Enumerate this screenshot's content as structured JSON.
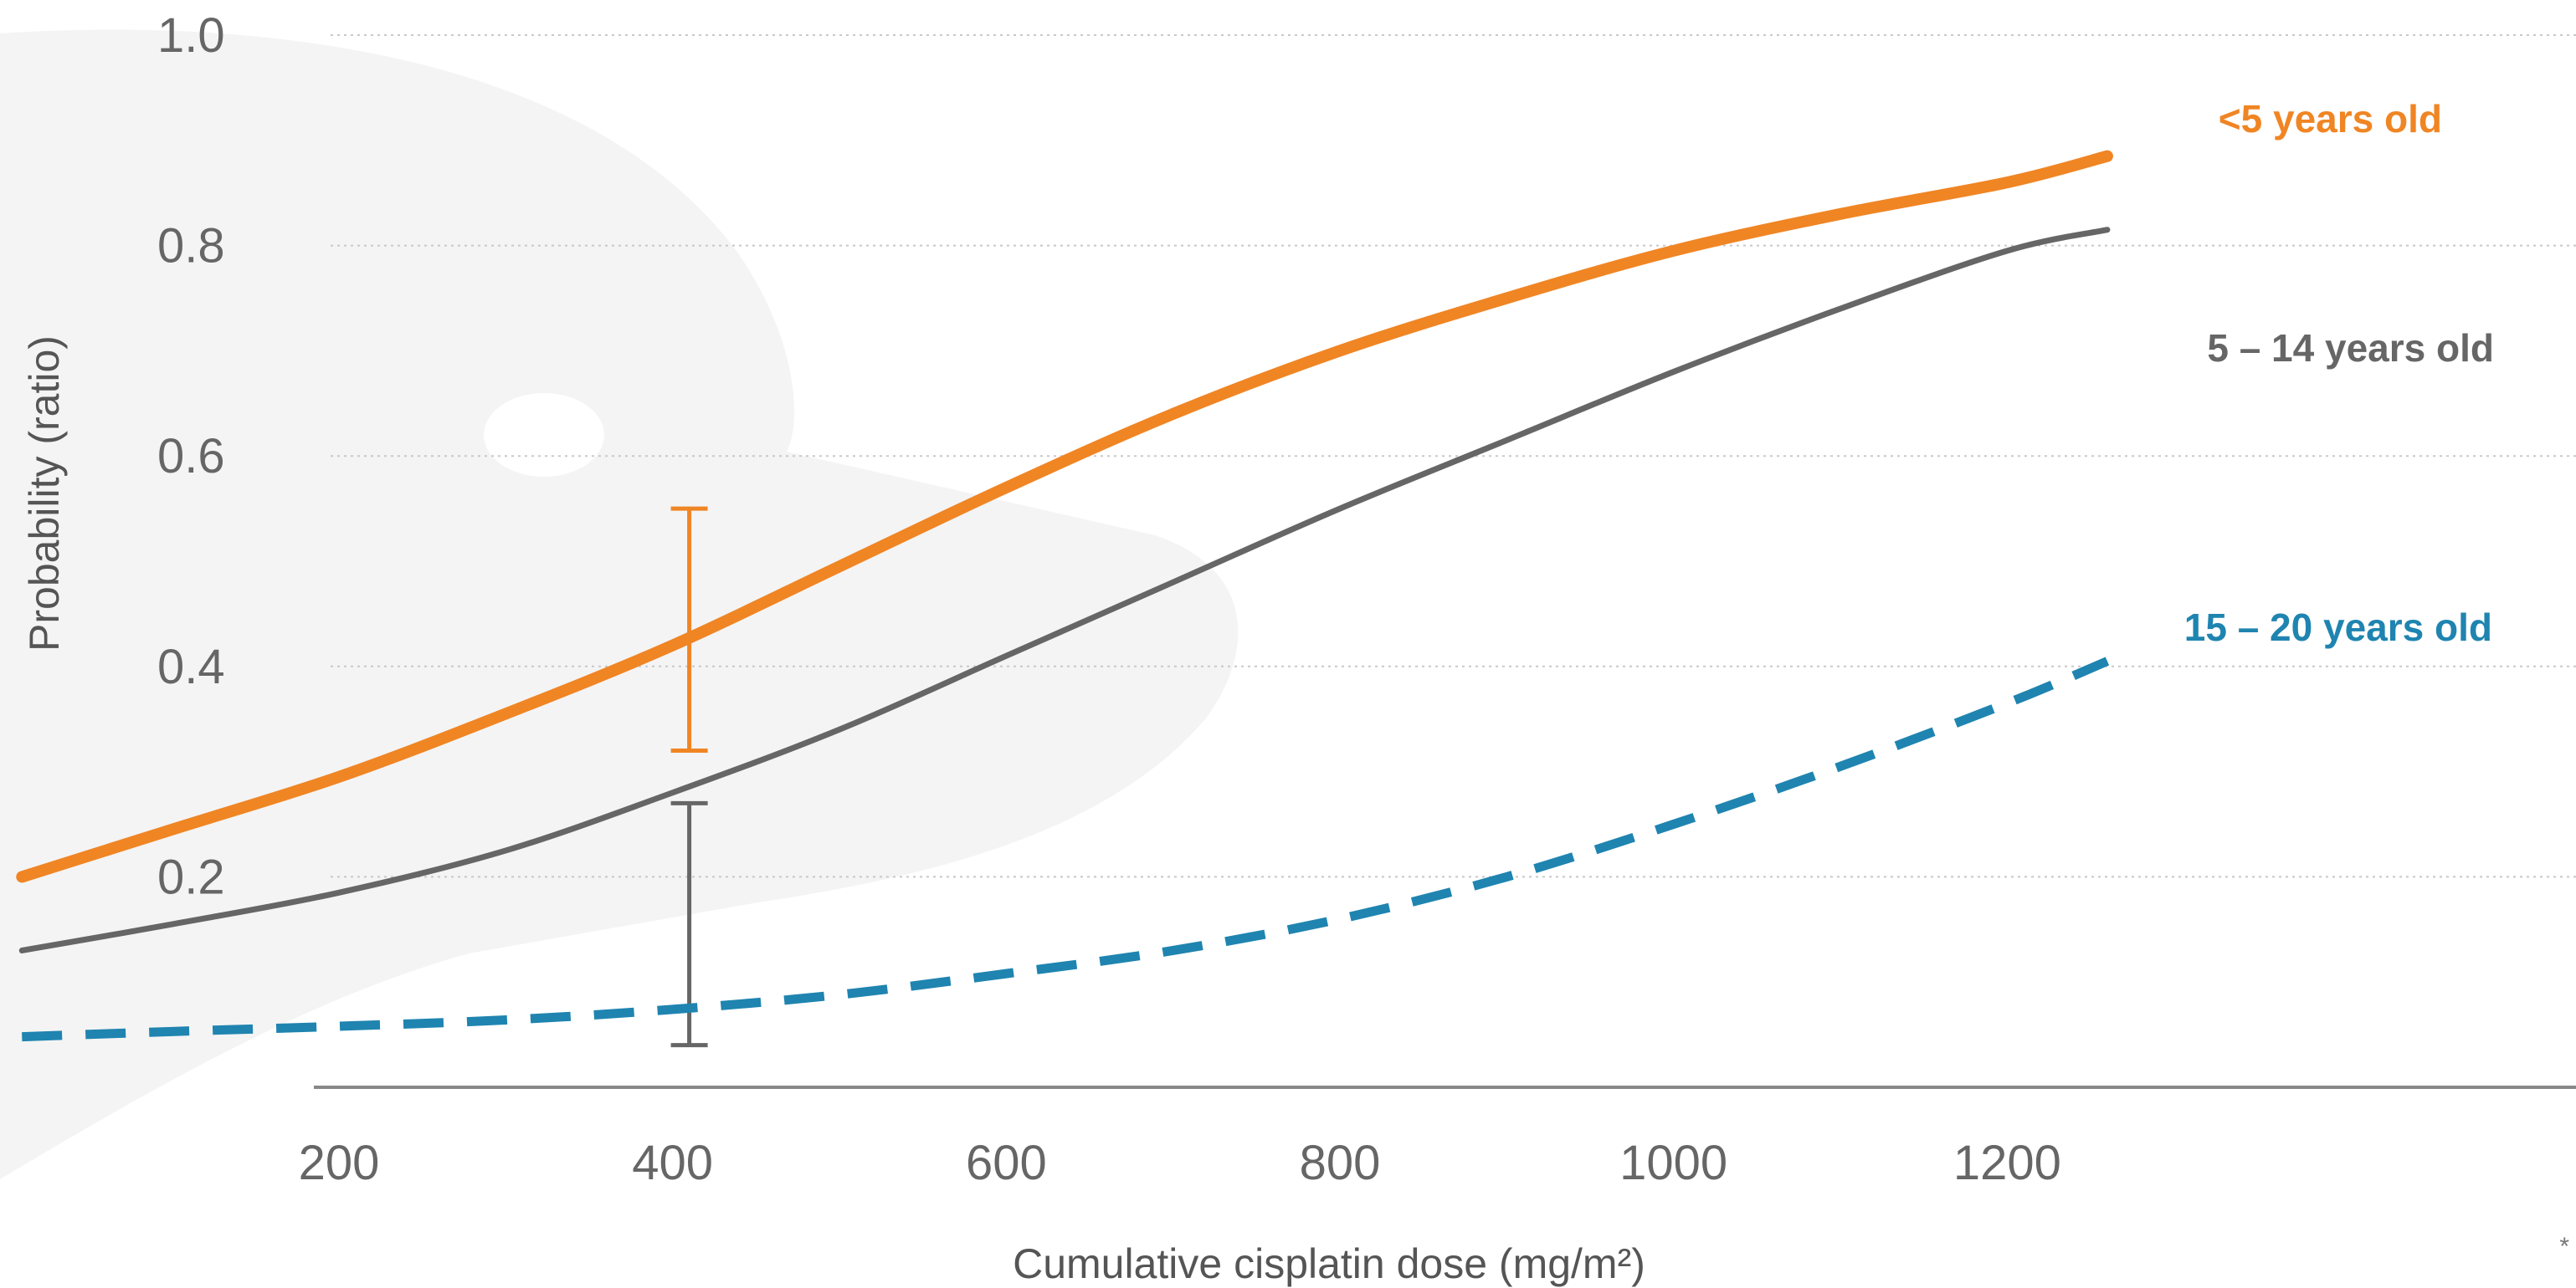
{
  "chart_data": {
    "type": "line",
    "title": "",
    "xlabel": "Cumulative cisplatin dose (mg/m²)",
    "ylabel": "Probability (ratio)",
    "xlim": [
      0,
      1350
    ],
    "ylim": [
      0,
      1.0
    ],
    "x_ticks": [
      200,
      400,
      600,
      800,
      1000,
      1200
    ],
    "x_tick_labels": [
      "200",
      "400",
      "600",
      "800",
      "1000",
      "1200"
    ],
    "y_ticks": [
      0.2,
      0.4,
      0.6,
      0.8,
      1.0
    ],
    "y_tick_labels": [
      "0.2",
      "0.4",
      "0.6",
      "0.8",
      "1.0"
    ],
    "grid": "horizontal dotted",
    "footnote": "*",
    "series": [
      {
        "name": "<5 years old",
        "color": "#F08524",
        "style": "solid-thick",
        "x": [
          10,
          100,
          200,
          300,
          400,
          500,
          600,
          700,
          800,
          900,
          1000,
          1100,
          1200,
          1260
        ],
        "y": [
          0.2,
          0.245,
          0.295,
          0.355,
          0.42,
          0.495,
          0.57,
          0.64,
          0.7,
          0.75,
          0.795,
          0.83,
          0.86,
          0.885
        ]
      },
      {
        "name": "5 – 14 years old",
        "color": "#666666",
        "style": "solid-thin",
        "x": [
          10,
          100,
          200,
          300,
          400,
          500,
          600,
          700,
          800,
          900,
          1000,
          1100,
          1200,
          1260
        ],
        "y": [
          0.13,
          0.155,
          0.185,
          0.225,
          0.28,
          0.34,
          0.41,
          0.48,
          0.55,
          0.615,
          0.68,
          0.74,
          0.795,
          0.815
        ]
      },
      {
        "name": "15 – 20 years old",
        "color": "#1F84B0",
        "style": "dashed",
        "x": [
          10,
          100,
          200,
          300,
          400,
          500,
          600,
          700,
          800,
          900,
          1000,
          1100,
          1200,
          1260
        ],
        "y": [
          0.048,
          0.053,
          0.058,
          0.064,
          0.074,
          0.088,
          0.108,
          0.13,
          0.16,
          0.2,
          0.25,
          0.305,
          0.365,
          0.405
        ]
      }
    ],
    "error_bars": [
      {
        "series": "<5 years old",
        "x": 410,
        "low": 0.32,
        "high": 0.55,
        "color": "#F08524"
      },
      {
        "series": "5 – 14 years old",
        "x": 410,
        "low": 0.04,
        "high": 0.27,
        "color": "#666666"
      }
    ]
  }
}
